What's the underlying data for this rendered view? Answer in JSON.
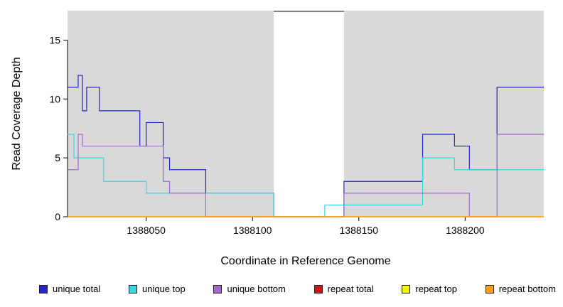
{
  "chart_data": {
    "type": "line",
    "step": true,
    "title": "",
    "xlabel": "Coordinate in Reference Genome",
    "ylabel": "Read Coverage Depth",
    "xlim": [
      1388013,
      1388237
    ],
    "ylim": [
      0,
      17.5
    ],
    "xticks": [
      1388050,
      1388100,
      1388150,
      1388200
    ],
    "yticks": [
      0,
      5,
      10,
      15
    ],
    "grid": false,
    "legend_position": "bottom",
    "plot_background": "#ffffff",
    "shaded_color": "#d9d9d9",
    "shaded_regions": [
      [
        1388013,
        1388110
      ],
      [
        1388143,
        1388237
      ]
    ],
    "uncovered_gap": [
      1388110,
      1388143
    ],
    "axis_color": "#000000",
    "series": [
      {
        "name": "unique total",
        "color": "#2424cd",
        "points": [
          [
            1388013,
            11
          ],
          [
            1388018,
            12
          ],
          [
            1388020,
            9
          ],
          [
            1388022,
            11
          ],
          [
            1388028,
            9
          ],
          [
            1388047,
            6
          ],
          [
            1388050,
            8
          ],
          [
            1388058,
            5
          ],
          [
            1388061,
            4
          ],
          [
            1388078,
            2
          ],
          [
            1388110,
            0
          ],
          [
            1388143,
            3
          ],
          [
            1388180,
            7
          ],
          [
            1388195,
            6
          ],
          [
            1388202,
            4
          ],
          [
            1388215,
            11
          ],
          [
            1388237,
            11
          ]
        ]
      },
      {
        "name": "unique top",
        "color": "#35d8dc",
        "points": [
          [
            1388013,
            7
          ],
          [
            1388016,
            5
          ],
          [
            1388030,
            3
          ],
          [
            1388050,
            2
          ],
          [
            1388110,
            0
          ],
          [
            1388134,
            1
          ],
          [
            1388180,
            5
          ],
          [
            1388195,
            4
          ],
          [
            1388237,
            4
          ]
        ]
      },
      {
        "name": "unique bottom",
        "color": "#a268cf",
        "points": [
          [
            1388013,
            4
          ],
          [
            1388018,
            7
          ],
          [
            1388020,
            6
          ],
          [
            1388058,
            3
          ],
          [
            1388061,
            2
          ],
          [
            1388078,
            0
          ],
          [
            1388143,
            2
          ],
          [
            1388202,
            0
          ],
          [
            1388215,
            7
          ],
          [
            1388237,
            7
          ]
        ]
      },
      {
        "name": "repeat total",
        "color": "#cc1414",
        "points": [
          [
            1388013,
            0
          ],
          [
            1388237,
            0
          ]
        ]
      },
      {
        "name": "repeat top",
        "color": "#f2f20a",
        "points": [
          [
            1388013,
            0
          ],
          [
            1388237,
            0
          ]
        ]
      },
      {
        "name": "repeat bottom",
        "color": "#ff9f0a",
        "points": [
          [
            1388013,
            0
          ],
          [
            1388237,
            0
          ]
        ]
      }
    ]
  }
}
